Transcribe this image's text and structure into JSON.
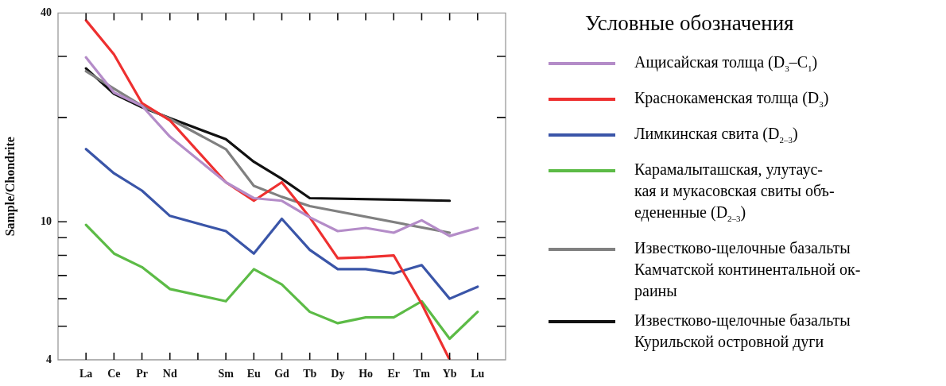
{
  "chart_data": {
    "type": "line",
    "ylabel": "Sample/Chondrite",
    "legend_title": "Условные обозначения",
    "legend": "right",
    "log": "y",
    "grid": false,
    "marker": "none",
    "line_style": "solid",
    "categories": [
      "La",
      "Ce",
      "Pr",
      "Nd",
      null,
      "Sm",
      "Eu",
      "Gd",
      "Tb",
      "Dy",
      "Ho",
      "Er",
      "Tm",
      "Yb",
      "Lu"
    ],
    "ylim": [
      4,
      40
    ],
    "yticks": [
      4,
      {
        "value": 5,
        "label": null
      },
      {
        "value": 6,
        "label": null
      },
      {
        "value": 7,
        "label": null
      },
      {
        "value": 8,
        "label": null
      },
      {
        "value": 9,
        "label": null
      },
      10,
      {
        "value": 20,
        "label": null
      },
      {
        "value": 30,
        "label": null
      },
      40
    ],
    "series": [
      {
        "name": "Ащисайская толща (D$_{3}$–C$_{1}$)",
        "color": "#b48cc8",
        "values": [
          29.8,
          23.6,
          21.6,
          17.6,
          null,
          13.0,
          11.7,
          11.5,
          10.3,
          9.4,
          9.6,
          9.3,
          10.1,
          9.1,
          9.6
        ]
      },
      {
        "name": "Краснокаменская толща (D$_{3}$)",
        "color": "#ee3030",
        "values": [
          38.1,
          30.4,
          22.0,
          19.6,
          null,
          13.0,
          11.5,
          13.0,
          10.3,
          7.85,
          7.9,
          8.0,
          5.8,
          4.0,
          null
        ]
      },
      {
        "name": "Лимкинская свита (D$_{2–3}$)",
        "color": "#3a55a8",
        "values": [
          16.2,
          13.8,
          12.3,
          10.4,
          null,
          9.4,
          8.1,
          10.2,
          8.3,
          7.3,
          7.3,
          7.1,
          7.5,
          6.0,
          6.5
        ]
      },
      {
        "name": "Карамалыташская, улутаус-\nкая и мукасовская свиты объ-\nедененные (D$_{2–3}$)",
        "color": "#5cbb46",
        "values": [
          9.8,
          8.1,
          7.4,
          6.4,
          null,
          5.9,
          7.3,
          6.6,
          5.5,
          5.1,
          5.3,
          5.3,
          5.9,
          4.6,
          5.5
        ]
      },
      {
        "name": "Известково-щелочные базальты\nКамчатской континентальной ок-\nраины",
        "color": "#808080",
        "values": [
          27.2,
          24.2,
          21.6,
          19.8,
          null,
          16.2,
          12.7,
          11.8,
          11.1,
          null,
          null,
          null,
          null,
          9.3,
          null
        ]
      },
      {
        "name": "Известково-щелочные базальты\nКурильской островной дуги",
        "color": "#111111",
        "values": [
          27.7,
          23.4,
          21.4,
          19.9,
          null,
          17.3,
          14.9,
          13.3,
          11.7,
          null,
          null,
          null,
          null,
          11.5,
          null
        ]
      }
    ]
  }
}
